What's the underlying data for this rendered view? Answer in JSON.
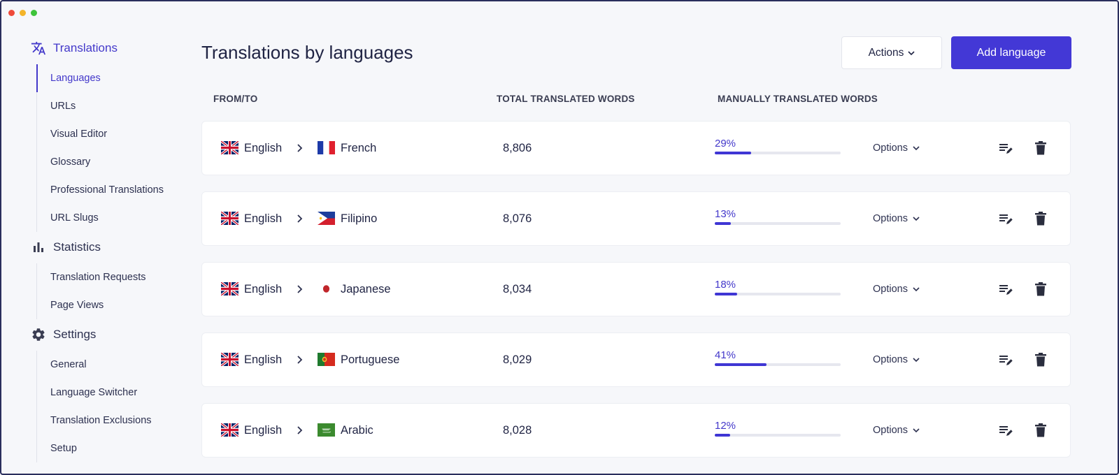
{
  "sidebar": {
    "sections": [
      {
        "title": "Translations",
        "icon": "translate-icon",
        "items": [
          "Languages",
          "URLs",
          "Visual Editor",
          "Glossary",
          "Professional Translations",
          "URL Slugs"
        ]
      },
      {
        "title": "Statistics",
        "icon": "bar-chart-icon",
        "items": [
          "Translation Requests",
          "Page Views"
        ]
      },
      {
        "title": "Settings",
        "icon": "gear-icon",
        "items": [
          "General",
          "Language Switcher",
          "Translation Exclusions",
          "Setup"
        ]
      }
    ],
    "active_item": "Languages"
  },
  "header": {
    "title": "Translations by languages",
    "actions_label": "Actions",
    "add_label": "Add language"
  },
  "table": {
    "columns": [
      "FROM/TO",
      "TOTAL TRANSLATED WORDS",
      "MANUALLY TRANSLATED WORDS"
    ],
    "options_label": "Options",
    "rows": [
      {
        "from": "English",
        "to": "French",
        "to_flag": "france-flag",
        "total_words": "8,806",
        "manual_pct": "29%",
        "manual_value": 29
      },
      {
        "from": "English",
        "to": "Filipino",
        "to_flag": "philippines-flag",
        "total_words": "8,076",
        "manual_pct": "13%",
        "manual_value": 13
      },
      {
        "from": "English",
        "to": "Japanese",
        "to_flag": "japan-flag",
        "total_words": "8,034",
        "manual_pct": "18%",
        "manual_value": 18
      },
      {
        "from": "English",
        "to": "Portuguese",
        "to_flag": "portugal-flag",
        "total_words": "8,029",
        "manual_pct": "41%",
        "manual_value": 41
      },
      {
        "from": "English",
        "to": "Arabic",
        "to_flag": "saudi-arabia-flag",
        "total_words": "8,028",
        "manual_pct": "12%",
        "manual_value": 12
      }
    ]
  },
  "colors": {
    "accent": "#4338ca",
    "button_primary": "#4338d6",
    "background": "#f6f7fa",
    "progress_track": "#e6e7ef"
  }
}
